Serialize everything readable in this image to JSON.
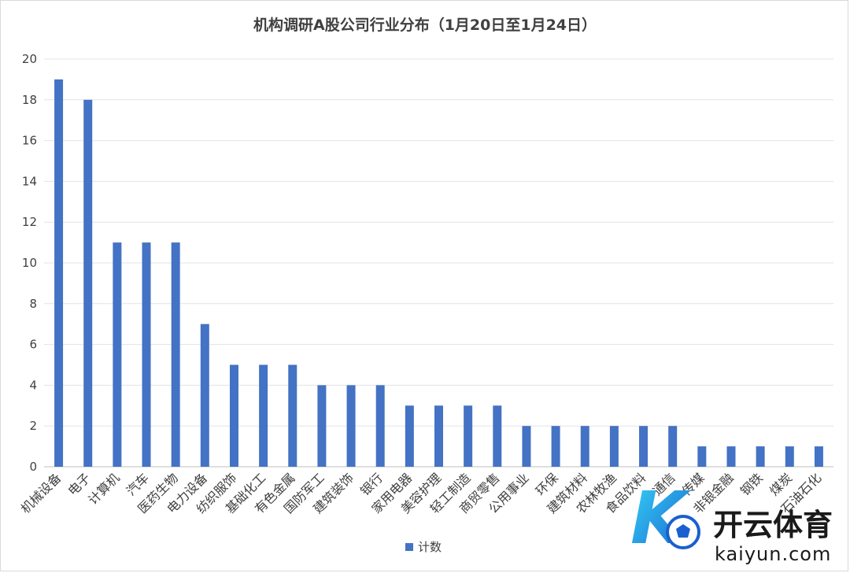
{
  "chart_data": {
    "type": "bar",
    "title": "机构调研A股公司行业分布（1月20日至1月24日）",
    "xlabel": "",
    "ylabel": "",
    "ylim": [
      0,
      20
    ],
    "yticks": [
      0,
      2,
      4,
      6,
      8,
      10,
      12,
      14,
      16,
      18,
      20
    ],
    "grid": true,
    "legend_position": "bottom",
    "categories": [
      "机械设备",
      "电子",
      "计算机",
      "汽车",
      "医药生物",
      "电力设备",
      "纺织服饰",
      "基础化工",
      "有色金属",
      "国防军工",
      "建筑装饰",
      "银行",
      "家用电器",
      "美容护理",
      "轻工制造",
      "商贸零售",
      "公用事业",
      "环保",
      "建筑材料",
      "农林牧渔",
      "食品饮料",
      "通信",
      "传媒",
      "非银金融",
      "钢铁",
      "煤炭",
      "石油石化"
    ],
    "series": [
      {
        "name": "计数",
        "color": "#4472c4",
        "values": [
          19,
          18,
          11,
          11,
          11,
          7,
          5,
          5,
          5,
          4,
          4,
          4,
          3,
          3,
          3,
          3,
          2,
          2,
          2,
          2,
          2,
          2,
          1,
          1,
          1,
          1,
          1
        ]
      }
    ]
  },
  "watermark": {
    "brand_cn": "开云体育",
    "brand_en": "kaiyun.com",
    "logo_letter": "K",
    "colors": {
      "cyan": "#18b6e8",
      "blue": "#1a5fd0",
      "text": "#1a1a1a"
    }
  }
}
